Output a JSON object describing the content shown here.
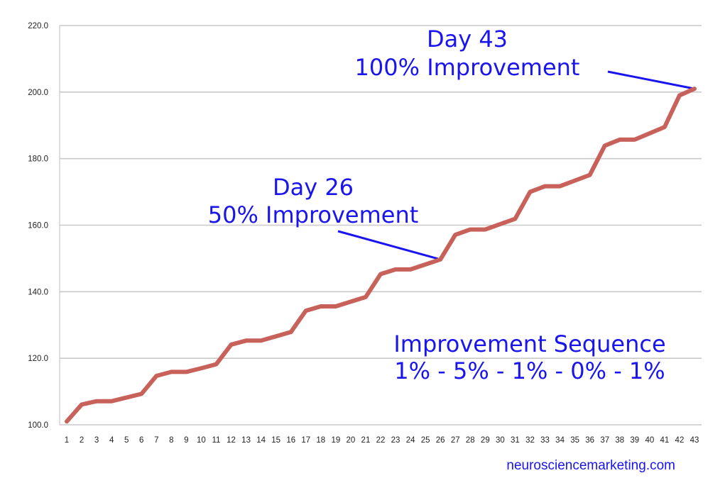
{
  "chart_data": {
    "type": "line",
    "x": [
      1,
      2,
      3,
      4,
      5,
      6,
      7,
      8,
      9,
      10,
      11,
      12,
      13,
      14,
      15,
      16,
      17,
      18,
      19,
      20,
      21,
      22,
      23,
      24,
      25,
      26,
      27,
      28,
      29,
      30,
      31,
      32,
      33,
      34,
      35,
      36,
      37,
      38,
      39,
      40,
      41,
      42,
      43
    ],
    "values": [
      101.0,
      106.1,
      107.1,
      107.1,
      108.2,
      109.3,
      114.7,
      115.9,
      115.9,
      117.0,
      118.2,
      124.1,
      125.3,
      125.3,
      126.6,
      127.9,
      134.3,
      135.6,
      135.6,
      137.0,
      138.4,
      145.3,
      146.7,
      146.7,
      148.2,
      149.7,
      157.1,
      158.7,
      158.7,
      160.3,
      161.9,
      170.0,
      171.7,
      171.7,
      173.4,
      175.1,
      183.9,
      185.7,
      185.7,
      187.6,
      189.5,
      199.0,
      201.0
    ],
    "ylim": [
      100,
      220
    ],
    "y_ticks": [
      "100.0",
      "120.0",
      "140.0",
      "160.0",
      "180.0",
      "200.0",
      "220.0"
    ],
    "grid": "horizontal",
    "line_color": "#c8615a",
    "annotation_color": "#1a14ee",
    "annotations": [
      {
        "line1": "Day 43",
        "line2": "100% Improvement",
        "target_x": 43,
        "target_y": 201.0
      },
      {
        "line1": "Day 26",
        "line2": "50% Improvement",
        "target_x": 26,
        "target_y": 149.7
      }
    ],
    "sequence": {
      "title": "Improvement Sequence",
      "steps": "1% - 5% - 1% - 0% - 1%"
    },
    "credit": "neurosciencemarketing.com"
  }
}
